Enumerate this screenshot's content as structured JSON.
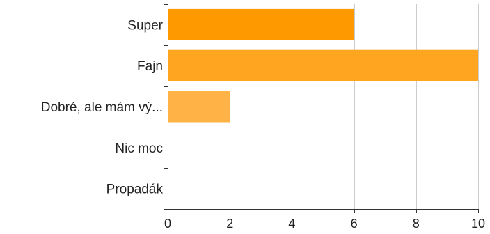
{
  "chart_data": {
    "type": "bar",
    "orientation": "horizontal",
    "categories": [
      "Super",
      "Fajn",
      "Dobré, ale mám vý...",
      "Nic moc",
      "Propadák"
    ],
    "values": [
      6,
      10,
      2,
      0,
      0
    ],
    "xlim": [
      0,
      10
    ],
    "xticks": [
      0,
      2,
      4,
      6,
      8,
      10
    ],
    "title": "",
    "xlabel": "",
    "ylabel": "",
    "grid": true,
    "legend": "none",
    "bar_colors": [
      "#ff9900",
      "#ffa520",
      "#ffb347",
      "#ffc06b",
      "#ffcc88"
    ],
    "grid_color": "#cccccc",
    "axis_color": "#333333"
  }
}
